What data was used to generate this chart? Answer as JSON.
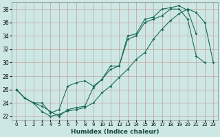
{
  "xlabel": "Humidex (Indice chaleur)",
  "bg_color": "#cde8e4",
  "grid_color": "#c8a8a8",
  "line_color": "#1a6b5a",
  "xlim": [
    -0.5,
    23.5
  ],
  "ylim": [
    21.5,
    39.0
  ],
  "xticks": [
    0,
    1,
    2,
    3,
    4,
    5,
    6,
    7,
    8,
    9,
    10,
    11,
    12,
    13,
    14,
    15,
    16,
    17,
    18,
    19,
    20,
    21,
    22,
    23
  ],
  "yticks": [
    22,
    24,
    26,
    28,
    30,
    32,
    34,
    36,
    38
  ],
  "line1_x": [
    0,
    1,
    2,
    3,
    4,
    5,
    6,
    7,
    8,
    9,
    10,
    11,
    12,
    13,
    14,
    15,
    16,
    17,
    18,
    19,
    20,
    21,
    22,
    23
  ],
  "line1_y": [
    26.0,
    24.7,
    24.0,
    22.7,
    22.0,
    22.3,
    22.8,
    23.0,
    23.3,
    24.0,
    25.5,
    26.5,
    27.8,
    29.0,
    30.5,
    31.5,
    33.5,
    35.0,
    36.3,
    37.3,
    38.0,
    37.5,
    36.0,
    30.0
  ],
  "line2_x": [
    0,
    1,
    2,
    3,
    4,
    5,
    6,
    7,
    8,
    9,
    10,
    11,
    12,
    13,
    14,
    15,
    16,
    17,
    18,
    19,
    20,
    21,
    22
  ],
  "line2_y": [
    26.0,
    24.7,
    24.0,
    24.0,
    22.5,
    23.0,
    26.5,
    27.0,
    27.3,
    26.5,
    27.5,
    29.0,
    29.5,
    33.5,
    34.0,
    36.0,
    36.5,
    37.0,
    38.0,
    38.0,
    36.5,
    31.0,
    30.0
  ],
  "line3_x": [
    0,
    1,
    2,
    3,
    4,
    5,
    6,
    7,
    8,
    9,
    10,
    11,
    12,
    13,
    14,
    15,
    16,
    17,
    18,
    19,
    20,
    21
  ],
  "line3_y": [
    26.0,
    24.7,
    24.0,
    23.5,
    22.7,
    22.0,
    23.0,
    23.3,
    23.5,
    26.3,
    27.5,
    29.5,
    29.5,
    34.0,
    34.3,
    36.5,
    36.8,
    38.0,
    38.2,
    38.5,
    37.8,
    34.3
  ]
}
